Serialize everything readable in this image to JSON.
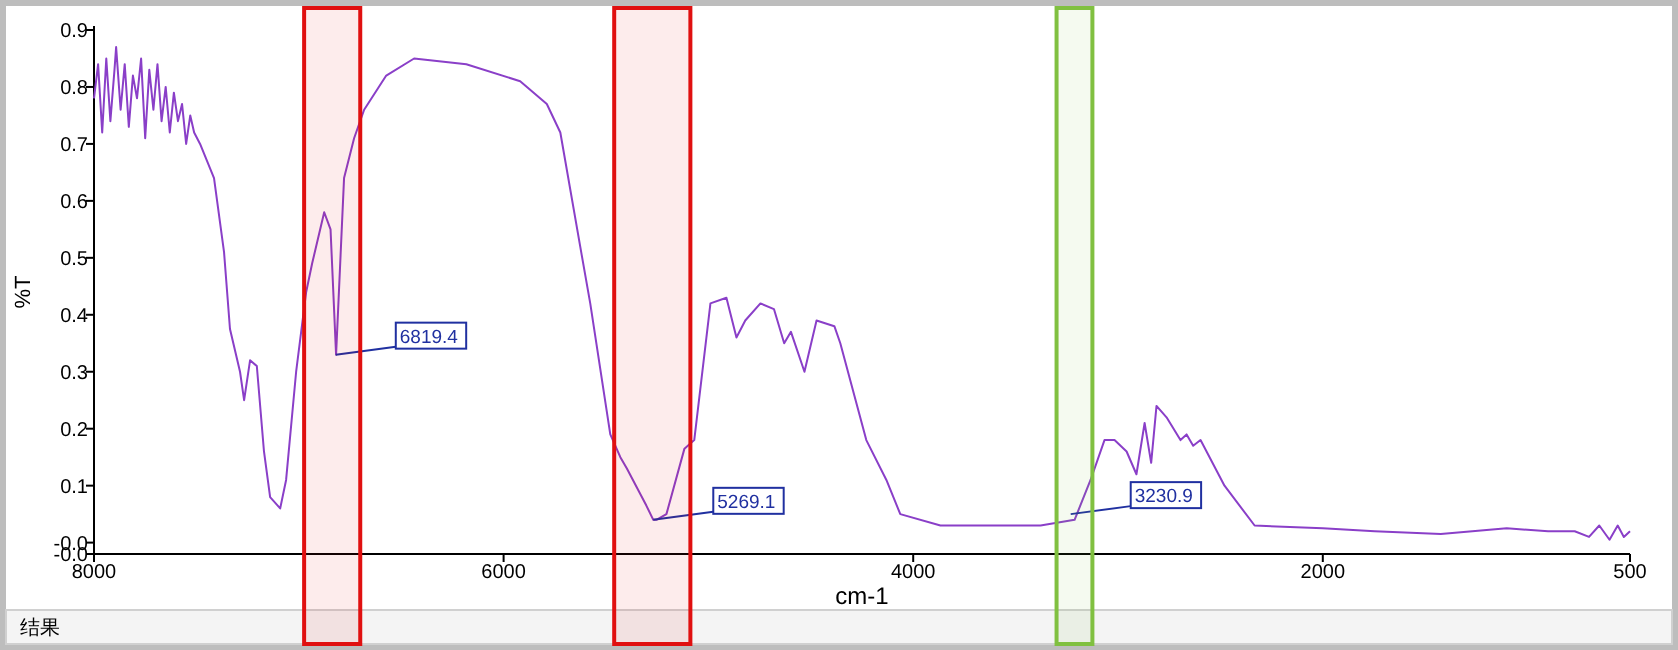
{
  "chart_data": {
    "type": "line",
    "xlabel": "cm-1",
    "ylabel": "%T",
    "xlim": [
      8000,
      500
    ],
    "xticks": [
      8000,
      6000,
      4000,
      2000,
      500
    ],
    "ylim": [
      -0.02,
      0.9
    ],
    "yticks": [
      0.9,
      0.8,
      0.7,
      0.6,
      0.5,
      0.4,
      0.3,
      0.2,
      0.1,
      {
        "value": 0,
        "label": "-0.0"
      },
      {
        "value": -0.02,
        "label": "-0.0"
      }
    ],
    "series": [
      {
        "color": "#8a3fc8",
        "x": [
          8000,
          7980,
          7960,
          7940,
          7920,
          7900,
          7892,
          7870,
          7850,
          7830,
          7810,
          7790,
          7770,
          7750,
          7730,
          7710,
          7690,
          7670,
          7650,
          7630,
          7610,
          7590,
          7570,
          7550,
          7530,
          7511,
          7482,
          7414,
          7365,
          7336,
          7287,
          7267,
          7238,
          7205,
          7170,
          7140,
          7091,
          7062,
          7013,
          6964,
          6935,
          6876,
          6845,
          6818,
          6779,
          6730,
          6681,
          6573,
          6437,
          6182,
          5919,
          5789,
          5723,
          5626,
          5577,
          5479,
          5430,
          5398,
          5303,
          5269,
          5254,
          5205,
          5117,
          5069,
          4990,
          4912,
          4863,
          4820,
          4746,
          4680,
          4630,
          4597,
          4531,
          4472,
          4385,
          4356,
          4229,
          4131,
          4063,
          3867,
          3600,
          3378,
          3212,
          3134,
          3066,
          3017,
          2958,
          2910,
          2870,
          2838,
          2812,
          2763,
          2695,
          2665,
          2633,
          2597,
          2480,
          2333,
          2000,
          1747,
          1424,
          1102,
          900,
          770,
          700,
          650,
          600,
          560,
          530,
          500
        ],
        "values": [
          0.78,
          0.84,
          0.72,
          0.85,
          0.74,
          0.83,
          0.87,
          0.76,
          0.84,
          0.73,
          0.82,
          0.78,
          0.85,
          0.71,
          0.83,
          0.76,
          0.84,
          0.74,
          0.8,
          0.72,
          0.79,
          0.74,
          0.77,
          0.7,
          0.75,
          0.72,
          0.7,
          0.64,
          0.51,
          0.375,
          0.3,
          0.25,
          0.32,
          0.31,
          0.16,
          0.08,
          0.06,
          0.11,
          0.3,
          0.44,
          0.49,
          0.58,
          0.55,
          0.33,
          0.64,
          0.71,
          0.76,
          0.82,
          0.85,
          0.84,
          0.81,
          0.77,
          0.72,
          0.52,
          0.42,
          0.19,
          0.15,
          0.13,
          0.065,
          0.04,
          0.04,
          0.05,
          0.165,
          0.18,
          0.42,
          0.43,
          0.36,
          0.39,
          0.42,
          0.41,
          0.35,
          0.37,
          0.3,
          0.39,
          0.38,
          0.35,
          0.18,
          0.11,
          0.05,
          0.03,
          0.03,
          0.03,
          0.04,
          0.11,
          0.18,
          0.18,
          0.16,
          0.12,
          0.21,
          0.14,
          0.24,
          0.22,
          0.18,
          0.19,
          0.17,
          0.18,
          0.1,
          0.03,
          0.025,
          0.02,
          0.015,
          0.025,
          0.02,
          0.02,
          0.01,
          0.03,
          0.005,
          0.03,
          0.01,
          0.02
        ]
      }
    ],
    "bands": [
      {
        "axis": "x",
        "from": 6974,
        "to": 6700,
        "color": "#e01010"
      },
      {
        "axis": "x",
        "from": 5460,
        "to": 5088,
        "color": "#e01010"
      },
      {
        "axis": "x",
        "from": 3300,
        "to": 3125,
        "color": "#80c040"
      }
    ],
    "annotations": [
      {
        "text": "6819.4",
        "x": 6819.4,
        "y": 0.33
      },
      {
        "text": "5269.1",
        "x": 5269.1,
        "y": 0.04
      },
      {
        "text": "3230.9",
        "x": 3230.9,
        "y": 0.05
      },
      "结果"
    ]
  }
}
